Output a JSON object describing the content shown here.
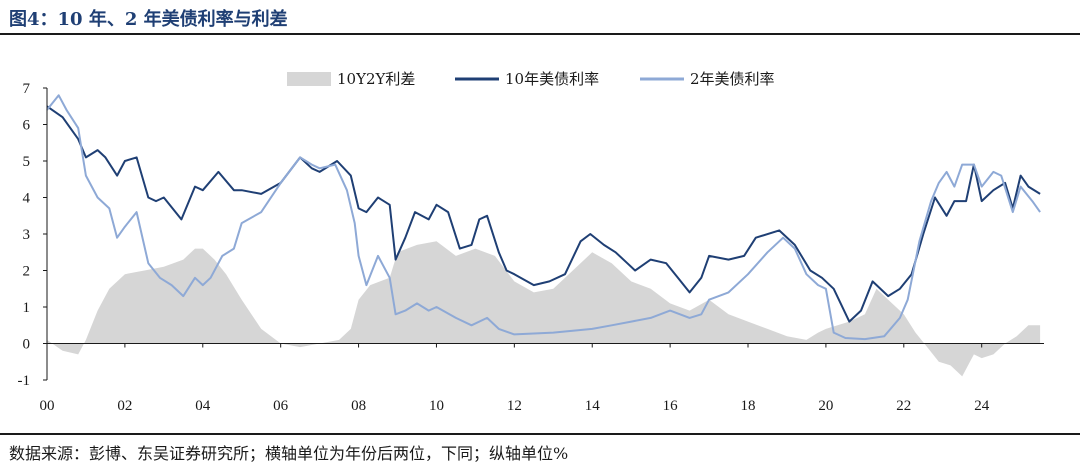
{
  "figure": {
    "title": "图4：10 年、2 年美债利率与利差",
    "footnote": "数据来源：彭博、东吴证券研究所；横轴单位为年份后两位，下同；纵轴单位%"
  },
  "chart_data": {
    "type": "line",
    "title": "",
    "xlabel": "",
    "ylabel": "",
    "xlim": [
      2000.0,
      2025.6
    ],
    "ylim": [
      -1,
      7
    ],
    "x_ticks": [
      2000,
      2002,
      2004,
      2006,
      2008,
      2010,
      2012,
      2014,
      2016,
      2018,
      2020,
      2022,
      2024
    ],
    "x_tick_labels": [
      "00",
      "02",
      "04",
      "06",
      "08",
      "10",
      "12",
      "14",
      "16",
      "18",
      "20",
      "22",
      "24"
    ],
    "y_ticks": [
      -1,
      0,
      1,
      2,
      3,
      4,
      5,
      6,
      7
    ],
    "y_tick_labels": [
      "-1",
      "0",
      "1",
      "2",
      "3",
      "4",
      "5",
      "6",
      "7"
    ],
    "grid": false,
    "legend_position": "top-center",
    "series": [
      {
        "name": "10年美债利率",
        "color": "#1f3f74",
        "x": [
          2000.0,
          2000.4,
          2000.8,
          2001.0,
          2001.3,
          2001.5,
          2001.8,
          2002.0,
          2002.3,
          2002.6,
          2002.8,
          2003.0,
          2003.45,
          2003.8,
          2004.0,
          2004.4,
          2004.8,
          2005.0,
          2005.5,
          2006.0,
          2006.5,
          2006.8,
          2007.0,
          2007.45,
          2007.8,
          2008.0,
          2008.2,
          2008.5,
          2008.8,
          2008.95,
          2009.2,
          2009.45,
          2009.8,
          2010.0,
          2010.3,
          2010.6,
          2010.9,
          2011.1,
          2011.3,
          2011.6,
          2011.8,
          2012.0,
          2012.5,
          2012.9,
          2013.3,
          2013.7,
          2013.95,
          2014.3,
          2014.6,
          2014.9,
          2015.1,
          2015.5,
          2015.9,
          2016.2,
          2016.5,
          2016.8,
          2017.0,
          2017.5,
          2017.9,
          2018.2,
          2018.8,
          2019.2,
          2019.6,
          2019.9,
          2020.2,
          2020.6,
          2020.9,
          2021.2,
          2021.6,
          2021.9,
          2022.2,
          2022.5,
          2022.8,
          2023.1,
          2023.3,
          2023.6,
          2023.8,
          2024.0,
          2024.3,
          2024.6,
          2024.8,
          2025.0,
          2025.2,
          2025.5
        ],
        "y": [
          6.5,
          6.2,
          5.6,
          5.1,
          5.3,
          5.1,
          4.6,
          5.0,
          5.1,
          4.0,
          3.9,
          4.0,
          3.4,
          4.3,
          4.2,
          4.7,
          4.2,
          4.2,
          4.1,
          4.4,
          5.1,
          4.8,
          4.7,
          5.0,
          4.6,
          3.7,
          3.6,
          4.0,
          3.8,
          2.3,
          2.9,
          3.6,
          3.4,
          3.8,
          3.6,
          2.6,
          2.7,
          3.4,
          3.5,
          2.5,
          2.0,
          1.9,
          1.6,
          1.7,
          1.9,
          2.8,
          3.0,
          2.7,
          2.5,
          2.2,
          2.0,
          2.3,
          2.2,
          1.8,
          1.4,
          1.8,
          2.4,
          2.3,
          2.4,
          2.9,
          3.1,
          2.7,
          2.0,
          1.8,
          1.5,
          0.6,
          0.9,
          1.7,
          1.3,
          1.5,
          1.9,
          3.0,
          4.0,
          3.5,
          3.9,
          3.9,
          4.9,
          3.9,
          4.2,
          4.4,
          3.7,
          4.6,
          4.3,
          4.1
        ]
      },
      {
        "name": "2年美债利率",
        "color": "#8ea9d6",
        "x": [
          2000.0,
          2000.3,
          2000.5,
          2000.8,
          2001.0,
          2001.3,
          2001.6,
          2001.8,
          2002.0,
          2002.3,
          2002.6,
          2002.9,
          2003.2,
          2003.5,
          2003.8,
          2004.0,
          2004.2,
          2004.5,
          2004.8,
          2005.0,
          2005.5,
          2006.0,
          2006.5,
          2006.8,
          2007.0,
          2007.4,
          2007.7,
          2007.9,
          2008.0,
          2008.2,
          2008.5,
          2008.8,
          2008.95,
          2009.2,
          2009.5,
          2009.8,
          2010.0,
          2010.5,
          2010.9,
          2011.3,
          2011.6,
          2012.0,
          2013.0,
          2014.0,
          2014.5,
          2015.0,
          2015.5,
          2016.0,
          2016.5,
          2016.8,
          2017.0,
          2017.5,
          2018.0,
          2018.5,
          2018.9,
          2019.2,
          2019.5,
          2019.8,
          2020.0,
          2020.2,
          2020.5,
          2021.0,
          2021.5,
          2021.9,
          2022.1,
          2022.4,
          2022.7,
          2022.9,
          2023.1,
          2023.3,
          2023.5,
          2023.8,
          2024.0,
          2024.3,
          2024.5,
          2024.8,
          2025.0,
          2025.3,
          2025.5
        ],
        "y": [
          6.4,
          6.8,
          6.4,
          5.9,
          4.6,
          4.0,
          3.7,
          2.9,
          3.2,
          3.6,
          2.2,
          1.8,
          1.6,
          1.3,
          1.8,
          1.6,
          1.8,
          2.4,
          2.6,
          3.3,
          3.6,
          4.4,
          5.1,
          4.9,
          4.8,
          4.9,
          4.2,
          3.3,
          2.4,
          1.6,
          2.4,
          1.8,
          0.8,
          0.9,
          1.1,
          0.9,
          1.0,
          0.7,
          0.5,
          0.7,
          0.4,
          0.25,
          0.3,
          0.4,
          0.5,
          0.6,
          0.7,
          0.9,
          0.7,
          0.8,
          1.2,
          1.4,
          1.9,
          2.5,
          2.9,
          2.6,
          1.9,
          1.6,
          1.5,
          0.3,
          0.15,
          0.12,
          0.2,
          0.7,
          1.2,
          2.8,
          3.9,
          4.4,
          4.7,
          4.3,
          4.9,
          4.9,
          4.3,
          4.7,
          4.6,
          3.6,
          4.3,
          3.9,
          3.6
        ]
      },
      {
        "name": "10Y2Y利差",
        "type": "area",
        "color": "#d6d6d6",
        "x": [
          2000.0,
          2000.4,
          2000.8,
          2001.0,
          2001.3,
          2001.6,
          2002.0,
          2002.5,
          2003.0,
          2003.5,
          2003.8,
          2004.0,
          2004.3,
          2004.6,
          2005.0,
          2005.5,
          2006.0,
          2006.5,
          2007.0,
          2007.5,
          2007.8,
          2008.0,
          2008.3,
          2008.8,
          2009.0,
          2009.5,
          2010.0,
          2010.5,
          2011.0,
          2011.5,
          2012.0,
          2012.5,
          2013.0,
          2013.5,
          2014.0,
          2014.5,
          2015.0,
          2015.5,
          2016.0,
          2016.5,
          2017.0,
          2017.5,
          2018.0,
          2018.5,
          2019.0,
          2019.5,
          2019.8,
          2020.0,
          2020.3,
          2020.6,
          2021.0,
          2021.3,
          2021.6,
          2022.0,
          2022.3,
          2022.6,
          2022.9,
          2023.2,
          2023.5,
          2023.8,
          2024.0,
          2024.3,
          2024.6,
          2024.9,
          2025.2,
          2025.5
        ],
        "y": [
          0.1,
          -0.2,
          -0.3,
          0.1,
          0.9,
          1.5,
          1.9,
          2.0,
          2.1,
          2.3,
          2.6,
          2.6,
          2.3,
          1.9,
          1.2,
          0.4,
          0.0,
          -0.1,
          0.0,
          0.1,
          0.4,
          1.2,
          1.6,
          1.8,
          2.5,
          2.7,
          2.8,
          2.4,
          2.6,
          2.4,
          1.7,
          1.4,
          1.5,
          2.0,
          2.5,
          2.2,
          1.7,
          1.5,
          1.1,
          0.9,
          1.2,
          0.8,
          0.6,
          0.4,
          0.2,
          0.1,
          0.3,
          0.4,
          0.5,
          0.6,
          0.8,
          1.5,
          1.2,
          0.8,
          0.3,
          -0.1,
          -0.5,
          -0.6,
          -0.9,
          -0.3,
          -0.4,
          -0.3,
          0.0,
          0.2,
          0.5,
          0.5
        ]
      }
    ]
  }
}
